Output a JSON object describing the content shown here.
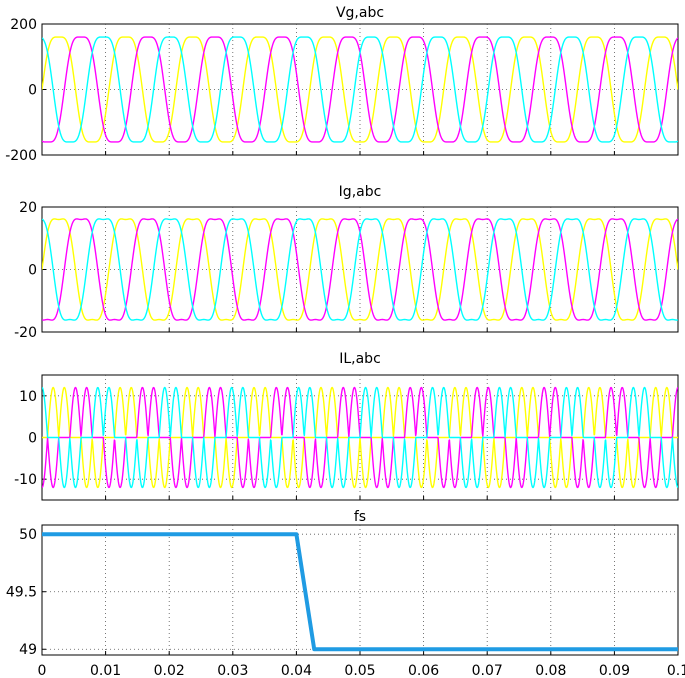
{
  "chart_data": [
    {
      "type": "line",
      "title": "Vg,abc",
      "xlim": [
        0,
        0.1
      ],
      "ylim": [
        -200,
        200
      ],
      "yticks": [
        -200,
        0,
        200
      ],
      "grid": true,
      "waveform": {
        "kind": "three-phase-sine",
        "amplitude": 160,
        "frequency_hz": 95,
        "harmonic3_ratio": 0.12
      },
      "series": [
        {
          "color": "#ffff00",
          "phase_deg": 0
        },
        {
          "color": "#ff00ff",
          "phase_deg": -120
        },
        {
          "color": "#00ffff",
          "phase_deg": 120
        }
      ]
    },
    {
      "type": "line",
      "title": "Ig,abc",
      "xlim": [
        0,
        0.1
      ],
      "ylim": [
        -20,
        20
      ],
      "yticks": [
        -20,
        0,
        20
      ],
      "grid": true,
      "waveform": {
        "kind": "three-phase-sine",
        "amplitude": 16,
        "frequency_hz": 95,
        "harmonic3_ratio": 0.14
      },
      "series": [
        {
          "color": "#ffff00",
          "phase_deg": 0
        },
        {
          "color": "#ff00ff",
          "phase_deg": -120
        },
        {
          "color": "#00ffff",
          "phase_deg": 120
        }
      ]
    },
    {
      "type": "line",
      "title": "IL,abc",
      "xlim": [
        0,
        0.1
      ],
      "ylim": [
        -15,
        15
      ],
      "yticks": [
        -10,
        0,
        10
      ],
      "grid": true,
      "waveform": {
        "kind": "three-phase-two-pulse",
        "amplitude": 12,
        "frequency_hz": 95,
        "conduction_deg": 120
      },
      "series": [
        {
          "color": "#ffff00",
          "phase_deg": 0
        },
        {
          "color": "#ff00ff",
          "phase_deg": -120
        },
        {
          "color": "#00ffff",
          "phase_deg": 120
        }
      ]
    },
    {
      "type": "line",
      "title": "fs",
      "xlim": [
        0,
        0.1
      ],
      "ylim": [
        48.95,
        50.08
      ],
      "yticks": [
        49,
        49.5,
        50
      ],
      "ytick_labels": [
        "49",
        "49.5",
        "50"
      ],
      "xticks": [
        0,
        0.01,
        0.02,
        0.03,
        0.04,
        0.05,
        0.06,
        0.07,
        0.08,
        0.09,
        0.1
      ],
      "xtick_labels": [
        "0",
        "0.01",
        "0.02",
        "0.03",
        "0.04",
        "0.05",
        "0.06",
        "0.07",
        "0.08",
        "0.09",
        "0.1"
      ],
      "grid": true,
      "series": [
        {
          "color": "#1f9be3",
          "x": [
            0,
            0.04,
            0.0428,
            0.1
          ],
          "y": [
            50,
            50,
            49,
            49
          ]
        }
      ]
    }
  ]
}
